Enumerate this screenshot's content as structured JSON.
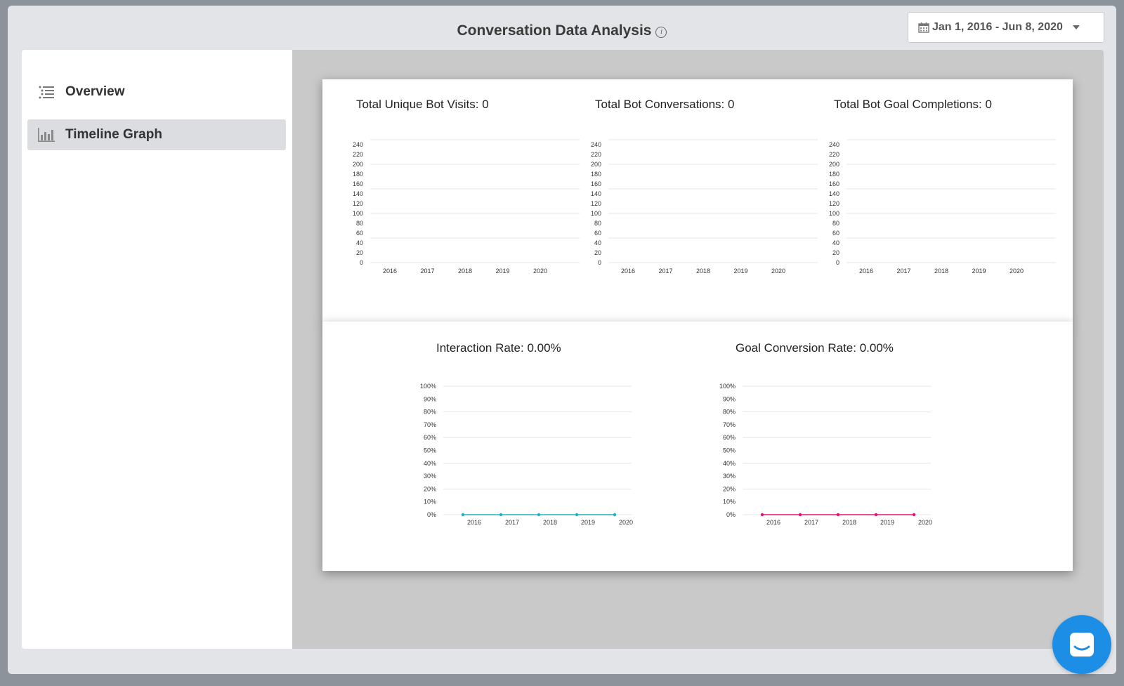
{
  "header": {
    "title": "Conversation Data Analysis",
    "info_icon": "info-icon",
    "date_range": "Jan 1, 2016 - Jun 8, 2020"
  },
  "sidebar": {
    "items": [
      {
        "label": "Overview",
        "icon": "list-icon",
        "active": false
      },
      {
        "label": "Timeline Graph",
        "icon": "bar-chart-icon",
        "active": true
      }
    ]
  },
  "colors": {
    "interaction_line": "#1fb3c2",
    "goal_line": "#e8107b",
    "messenger": "#1c8ee6"
  },
  "chart_data": [
    {
      "type": "bar",
      "title": "Total Unique Bot Visits: 0",
      "categories": [
        "2016",
        "2017",
        "2018",
        "2019",
        "2020"
      ],
      "values": [
        0,
        0,
        0,
        0,
        0
      ],
      "yticks": [
        "240",
        "220",
        "200",
        "180",
        "160",
        "140",
        "120",
        "100",
        "80",
        "60",
        "40",
        "20",
        "0"
      ],
      "ylim": [
        0,
        240
      ]
    },
    {
      "type": "bar",
      "title": "Total Bot Conversations: 0",
      "categories": [
        "2016",
        "2017",
        "2018",
        "2019",
        "2020"
      ],
      "values": [
        0,
        0,
        0,
        0,
        0
      ],
      "yticks": [
        "240",
        "220",
        "200",
        "180",
        "160",
        "140",
        "120",
        "100",
        "80",
        "60",
        "40",
        "20",
        "0"
      ],
      "ylim": [
        0,
        240
      ]
    },
    {
      "type": "bar",
      "title": "Total Bot Goal Completions: 0",
      "categories": [
        "2016",
        "2017",
        "2018",
        "2019",
        "2020"
      ],
      "values": [
        0,
        0,
        0,
        0,
        0
      ],
      "yticks": [
        "240",
        "220",
        "200",
        "180",
        "160",
        "140",
        "120",
        "100",
        "80",
        "60",
        "40",
        "20",
        "0"
      ],
      "ylim": [
        0,
        240
      ]
    },
    {
      "type": "line",
      "title": "Interaction Rate: 0.00%",
      "categories": [
        "2016",
        "2017",
        "2018",
        "2019",
        "2020"
      ],
      "values": [
        0,
        0,
        0,
        0,
        0
      ],
      "yticks": [
        "100%",
        "90%",
        "80%",
        "70%",
        "60%",
        "50%",
        "40%",
        "30%",
        "20%",
        "10%",
        "0%"
      ],
      "ylim": [
        0,
        100
      ],
      "color": "#1fb3c2"
    },
    {
      "type": "line",
      "title": "Goal Conversion Rate: 0.00%",
      "categories": [
        "2016",
        "2017",
        "2018",
        "2019",
        "2020"
      ],
      "values": [
        0,
        0,
        0,
        0,
        0
      ],
      "yticks": [
        "100%",
        "90%",
        "80%",
        "70%",
        "60%",
        "50%",
        "40%",
        "30%",
        "20%",
        "10%",
        "0%"
      ],
      "ylim": [
        0,
        100
      ],
      "color": "#e8107b"
    }
  ]
}
